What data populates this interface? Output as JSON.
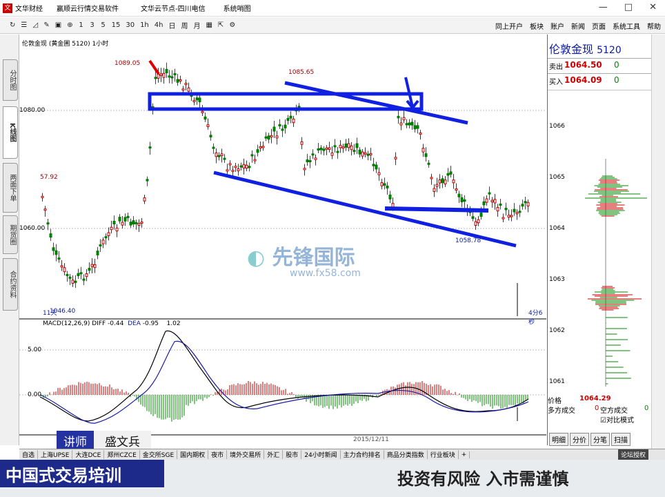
{
  "titlebar": {
    "app": "文华财经",
    "items": [
      "赢顺云行情交易软件",
      "文华云节点-四川电信",
      "系统哨图"
    ]
  },
  "toolbar": {
    "periods": [
      "1",
      "3",
      "5",
      "15",
      "30",
      "1h",
      "4h",
      "日",
      "周",
      "月"
    ],
    "right": [
      "同上开户",
      "板块",
      "账户",
      "新闻",
      "页面",
      "系统工具",
      "帮助"
    ]
  },
  "lefttabs": [
    "分时图",
    "K线图",
    "两面下单",
    "期货圈",
    "合约资料"
  ],
  "chart": {
    "header": "伦敦金现 (黄金圃 5120) 1小时",
    "macd_label": "MACD(12,26,9)",
    "diff_label": "DIFF",
    "diff": "-0.44",
    "dea_label": "DEA",
    "dea": "-0.95",
    "macd_val": "1.02",
    "period_label": "11天",
    "time_left": "4分6秒",
    "date": "2015/12/11"
  },
  "chart_data": {
    "type": "candlestick",
    "y_ticks": [
      "1080.00",
      "1060.00"
    ],
    "macd_ticks": [
      "5.00",
      "0.00"
    ],
    "annotations": [
      "1089.05",
      "1085.65",
      "1058.78",
      "1046.40",
      "57.92"
    ]
  },
  "watermark": {
    "name": "先锋国际",
    "url": "www.fx58.com"
  },
  "rightpanel": {
    "name": "伦敦金现",
    "code": "5120",
    "sell_label": "卖出",
    "sell": "1064.50",
    "sell_n": "0",
    "buy_label": "买入",
    "buy": "1064.09",
    "buy_n": "0",
    "price_label": "价格",
    "price": "1064.29",
    "long_label": "多方成交",
    "long": "0",
    "short_label": "空方成交",
    "short": "0",
    "mode": "对比模式",
    "ticks": [
      "1066",
      "1065",
      "1064",
      "1063",
      "1062",
      "1061"
    ],
    "tabs": [
      "明细",
      "分价",
      "分笔",
      "扫描"
    ]
  },
  "bottomtabs": [
    "自选",
    "上海UPSE",
    "大连DCE",
    "郑州CZCE",
    "金交所SGE",
    "国内期权",
    "夜市",
    "境外交易所",
    "外汇",
    "股市",
    "24小时新闻",
    "主力合约排名",
    "商品分类指数",
    "行业板块",
    "+"
  ],
  "teacher": {
    "label": "讲师",
    "name": "盛文兵"
  },
  "footer": {
    "left": "中国式交易培训",
    "right": "投资有风险 入市需谨慎"
  },
  "winbtn": "论坛授权"
}
